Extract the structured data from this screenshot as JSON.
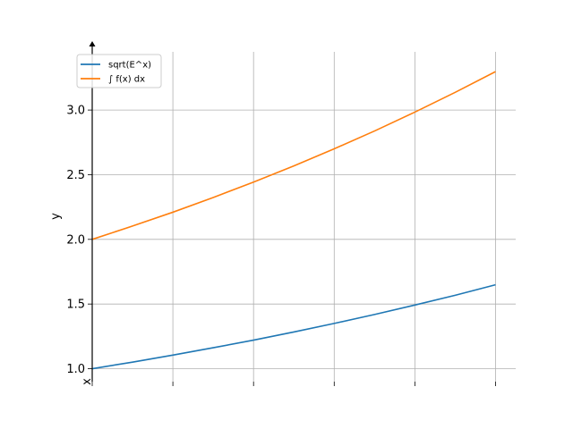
{
  "chart_data": {
    "type": "line",
    "title": "",
    "xlabel": "x",
    "ylabel": "y",
    "xlim": [
      0,
      1.05
    ],
    "ylim": [
      0.9,
      3.45
    ],
    "grid": true,
    "legend_position": "top-left",
    "x_ticks": [
      0,
      0.2,
      0.4,
      0.6,
      0.8,
      1.0
    ],
    "y_ticks": [
      1.0,
      1.5,
      2.0,
      2.5,
      3.0
    ],
    "y_tick_labels": [
      "1.0",
      "1.5",
      "2.0",
      "2.5",
      "3.0"
    ],
    "series": [
      {
        "name": "sqrt(E^x)",
        "color": "#1f77b4",
        "x": [
          0,
          0.1,
          0.2,
          0.3,
          0.4,
          0.5,
          0.6,
          0.7,
          0.8,
          0.9,
          1.0
        ],
        "y": [
          1.0,
          1.051,
          1.105,
          1.162,
          1.221,
          1.284,
          1.35,
          1.419,
          1.492,
          1.568,
          1.649
        ]
      },
      {
        "name": "∫ f(x) dx",
        "color": "#ff7f0e",
        "x": [
          0,
          0.1,
          0.2,
          0.3,
          0.4,
          0.5,
          0.6,
          0.7,
          0.8,
          0.9,
          1.0
        ],
        "y": [
          2.0,
          2.103,
          2.21,
          2.324,
          2.443,
          2.568,
          2.7,
          2.838,
          2.984,
          3.137,
          3.297
        ]
      }
    ]
  }
}
